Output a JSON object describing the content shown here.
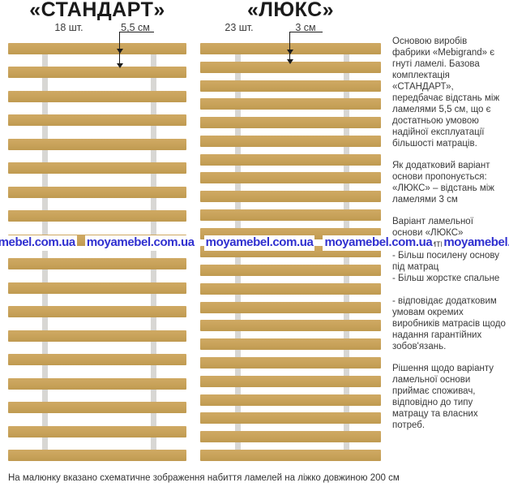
{
  "diagrams": [
    {
      "title": "«СТАНДАРТ»",
      "count_label": "18 шт.",
      "spacing_label": "5,5 см",
      "slat_count": 18
    },
    {
      "title": "«ЛЮКС»",
      "count_label": "23 шт.",
      "spacing_label": "3 см",
      "slat_count": 23
    }
  ],
  "sidebar": {
    "p1": "Основою виробів фабрики «Mebigrand» є гнуті ламелі. Базова комплектація «СТАНДАРТ», передбачає відстань між ламелями 5,5 см, що є достатньою умовою надійної експлуатації більшості матраців.",
    "p2": "Як додатковий варіант основи пропонується: «ЛЮКС» – відстань між ламелями 3 см",
    "p3_intro": "Варіант ламельної основи «ЛЮКС» забезпечить:",
    "p3_items": [
      "- Більш посилену основу під матрац",
      "- Більш жорстке спальне",
      "- відповідає додатковим умовам окремих виробників матрасів щодо надання гарантійних зобов'язань."
    ],
    "p4": "Рішення щодо варіанту ламельної основи приймає споживач, відповідно до типу матрацу та власних потреб."
  },
  "watermark": {
    "text": "moyamebel.com.ua",
    "color": "#3030d0"
  },
  "footer": {
    "note": "На малюнку вказано схематичне зображення набиття ламелей на ліжко довжиною 200 см"
  },
  "colors": {
    "slat": "#c8a25a",
    "slat_dark": "#bf9a50",
    "rail": "#d8d7d4",
    "ink": "#1a1a1a",
    "label": "#3c3c3c",
    "body": "#3a3a3a",
    "dim": "#1c1c1c"
  }
}
